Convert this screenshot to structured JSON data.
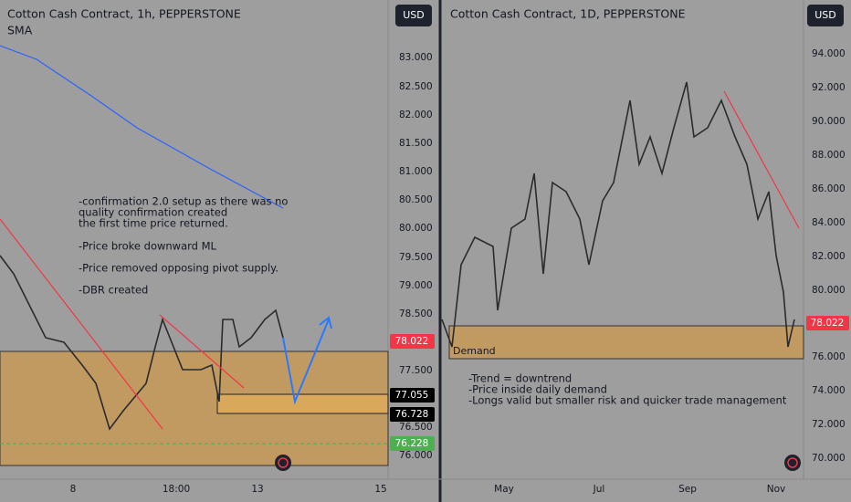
{
  "left_panel": {
    "title": "Cotton Cash Contract, 1h, PEPPERSTONE",
    "indicator": "SMA",
    "currency": "USD",
    "price_axis": [
      "83.000",
      "82.500",
      "82.000",
      "81.500",
      "81.000",
      "80.500",
      "80.000",
      "79.500",
      "79.000",
      "78.500",
      "77.500",
      "76.500",
      "76.000"
    ],
    "price_tags": [
      "78.022",
      "77.055",
      "76.728",
      "76.228"
    ],
    "time_axis": [
      "8",
      "18:00",
      "13",
      "15"
    ],
    "notes": [
      "-confirmation 2.0 setup as there was no",
      "quality confirmation created",
      "the first time price returned.",
      "-Price broke downward ML",
      "-Price removed opposing pivot supply.",
      "-DBR created"
    ]
  },
  "right_panel": {
    "title": "Cotton Cash Contract, 1D, PEPPERSTONE",
    "currency": "USD",
    "price_axis": [
      "94.000",
      "92.000",
      "90.000",
      "88.000",
      "86.000",
      "84.000",
      "82.000",
      "80.000",
      "76.000",
      "74.000",
      "72.000",
      "70.000"
    ],
    "price_tag": "78.022",
    "zone_label": "Demand",
    "time_axis": [
      "May",
      "Jul",
      "Sep",
      "Nov"
    ],
    "notes": [
      "-Trend = downtrend",
      "-Price inside daily demand",
      "-Longs valid but smaller risk and quicker trade management"
    ]
  }
}
